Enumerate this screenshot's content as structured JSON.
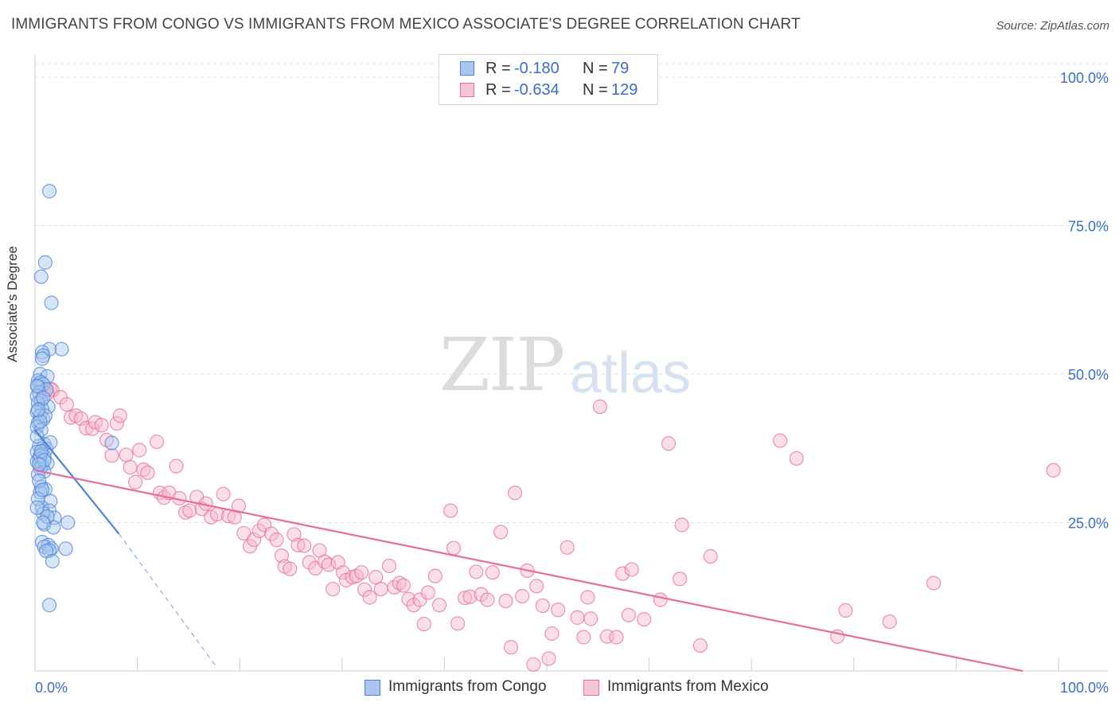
{
  "title": "IMMIGRANTS FROM CONGO VS IMMIGRANTS FROM MEXICO ASSOCIATE'S DEGREE CORRELATION CHART",
  "source": "Source: ZipAtlas.com",
  "watermark": {
    "zip": "ZIP",
    "atlas": "atlas"
  },
  "legend_top": [
    {
      "r_label": "R =",
      "r_value": "-0.180",
      "n_label": "N =",
      "n_value": "79"
    },
    {
      "r_label": "R =",
      "r_value": "-0.634",
      "n_label": "N =",
      "n_value": "129"
    }
  ],
  "colors": {
    "congo": "#4a86d8",
    "congo_fill": "#a9c6ef",
    "mexico": "#e86d9c",
    "mexico_fill": "#f6b7cc",
    "tick_label": "#3a6fc4",
    "grid": "#e2e2e2"
  },
  "chart_data": {
    "type": "scatter",
    "title": "IMMIGRANTS FROM CONGO VS IMMIGRANTS FROM MEXICO ASSOCIATE'S DEGREE CORRELATION CHART",
    "xlabel": "",
    "ylabel": "Associate's Degree",
    "xlim": [
      0,
      100
    ],
    "ylim": [
      0,
      100
    ],
    "x_tick_labels": [
      "0.0%",
      "100.0%"
    ],
    "y_ticks": [
      25,
      50,
      75,
      100
    ],
    "y_tick_labels": [
      "25.0%",
      "50.0%",
      "75.0%",
      "100.0%"
    ],
    "legend": [
      "Immigrants from Congo",
      "Immigrants from Mexico"
    ],
    "grid": true,
    "series": [
      {
        "name": "Immigrants from Congo",
        "r": -0.18,
        "n": 79,
        "trend": {
          "x0": 0,
          "y0": 40.6,
          "x1": 8.2,
          "y1": 23.1,
          "dash_x1": 17.8,
          "dash_y1": 0.5
        },
        "points": [
          [
            1.4,
            80.8
          ],
          [
            1.0,
            68.8
          ],
          [
            0.6,
            66.4
          ],
          [
            1.6,
            62.0
          ],
          [
            2.6,
            54.2
          ],
          [
            1.4,
            54.2
          ],
          [
            0.7,
            53.7
          ],
          [
            0.8,
            53.1
          ],
          [
            0.7,
            52.6
          ],
          [
            0.5,
            50.0
          ],
          [
            1.2,
            49.6
          ],
          [
            0.3,
            48.9
          ],
          [
            0.6,
            48.6
          ],
          [
            0.8,
            48.3
          ],
          [
            0.3,
            47.9
          ],
          [
            1.1,
            47.4
          ],
          [
            0.4,
            46.9
          ],
          [
            0.2,
            46.3
          ],
          [
            0.6,
            45.5
          ],
          [
            0.3,
            45.1
          ],
          [
            1.3,
            44.5
          ],
          [
            0.7,
            44.1
          ],
          [
            0.2,
            43.6
          ],
          [
            0.5,
            43.0
          ],
          [
            0.8,
            42.4
          ],
          [
            0.3,
            41.8
          ],
          [
            0.2,
            41.1
          ],
          [
            0.6,
            40.6
          ],
          [
            0.9,
            38.2
          ],
          [
            7.5,
            38.4
          ],
          [
            0.4,
            37.9
          ],
          [
            1.1,
            37.4
          ],
          [
            0.2,
            36.9
          ],
          [
            0.6,
            36.5
          ],
          [
            0.9,
            36.1
          ],
          [
            0.4,
            35.7
          ],
          [
            0.2,
            35.3
          ],
          [
            1.2,
            35.0
          ],
          [
            0.7,
            34.6
          ],
          [
            0.5,
            34.1
          ],
          [
            0.9,
            33.6
          ],
          [
            0.3,
            33.1
          ],
          [
            0.6,
            31.0
          ],
          [
            1.0,
            30.6
          ],
          [
            0.5,
            30.1
          ],
          [
            1.5,
            28.6
          ],
          [
            0.7,
            27.5
          ],
          [
            1.4,
            27.0
          ],
          [
            0.8,
            26.5
          ],
          [
            1.9,
            25.8
          ],
          [
            3.2,
            25.0
          ],
          [
            0.9,
            24.7
          ],
          [
            1.8,
            24.2
          ],
          [
            0.7,
            21.7
          ],
          [
            1.3,
            21.2
          ],
          [
            0.9,
            20.9
          ],
          [
            1.6,
            20.6
          ],
          [
            3.0,
            20.6
          ],
          [
            1.4,
            20.3
          ],
          [
            1.1,
            20.2
          ],
          [
            1.7,
            18.5
          ],
          [
            1.4,
            11.1
          ],
          [
            0.2,
            39.5
          ],
          [
            0.4,
            32.0
          ],
          [
            0.3,
            29.0
          ],
          [
            0.5,
            36.2
          ],
          [
            1.0,
            43.0
          ],
          [
            0.8,
            46.0
          ],
          [
            0.2,
            48.0
          ],
          [
            0.6,
            37.0
          ],
          [
            0.9,
            35.5
          ],
          [
            0.4,
            34.8
          ],
          [
            1.2,
            26.0
          ],
          [
            0.5,
            42.0
          ],
          [
            0.3,
            44.0
          ],
          [
            0.7,
            30.5
          ],
          [
            0.2,
            27.5
          ],
          [
            1.5,
            38.5
          ],
          [
            0.8,
            25.0
          ]
        ]
      },
      {
        "name": "Immigrants from Mexico",
        "r": -0.634,
        "n": 129,
        "trend": {
          "x0": 0,
          "y0": 33.8,
          "x1": 96.5,
          "y1": 0
        },
        "points": [
          [
            0.4,
            48.5
          ],
          [
            0.6,
            47.6
          ],
          [
            1.5,
            47.5
          ],
          [
            1.7,
            47.3
          ],
          [
            0.8,
            47.0
          ],
          [
            1.2,
            46.7
          ],
          [
            2.5,
            46.1
          ],
          [
            3.1,
            44.9
          ],
          [
            3.5,
            42.7
          ],
          [
            4.0,
            43.0
          ],
          [
            4.5,
            42.5
          ],
          [
            5.0,
            40.9
          ],
          [
            5.6,
            40.8
          ],
          [
            5.9,
            41.9
          ],
          [
            6.5,
            41.4
          ],
          [
            7.0,
            38.9
          ],
          [
            7.5,
            36.3
          ],
          [
            8.0,
            41.7
          ],
          [
            8.3,
            43.0
          ],
          [
            8.9,
            36.4
          ],
          [
            9.3,
            34.3
          ],
          [
            9.8,
            31.8
          ],
          [
            10.2,
            37.2
          ],
          [
            10.6,
            33.9
          ],
          [
            11.0,
            33.4
          ],
          [
            11.9,
            38.6
          ],
          [
            12.2,
            30.0
          ],
          [
            12.6,
            29.2
          ],
          [
            13.1,
            30.0
          ],
          [
            13.8,
            34.5
          ],
          [
            14.1,
            29.1
          ],
          [
            14.7,
            26.7
          ],
          [
            15.1,
            27.0
          ],
          [
            15.8,
            29.3
          ],
          [
            16.3,
            27.3
          ],
          [
            16.7,
            28.2
          ],
          [
            17.2,
            25.9
          ],
          [
            17.8,
            26.4
          ],
          [
            18.4,
            29.8
          ],
          [
            18.9,
            26.1
          ],
          [
            19.5,
            25.9
          ],
          [
            19.9,
            27.8
          ],
          [
            20.4,
            23.2
          ],
          [
            21.0,
            21.0
          ],
          [
            21.4,
            22.1
          ],
          [
            21.9,
            23.6
          ],
          [
            22.4,
            24.6
          ],
          [
            23.1,
            23.1
          ],
          [
            23.6,
            22.1
          ],
          [
            24.1,
            19.4
          ],
          [
            24.4,
            17.6
          ],
          [
            24.9,
            17.2
          ],
          [
            25.3,
            23.0
          ],
          [
            25.7,
            21.2
          ],
          [
            26.3,
            21.1
          ],
          [
            26.8,
            18.3
          ],
          [
            27.4,
            17.3
          ],
          [
            27.8,
            20.3
          ],
          [
            28.3,
            18.4
          ],
          [
            28.7,
            17.9
          ],
          [
            29.1,
            13.8
          ],
          [
            29.6,
            18.3
          ],
          [
            30.1,
            16.6
          ],
          [
            30.4,
            15.3
          ],
          [
            31.0,
            15.8
          ],
          [
            31.4,
            16.0
          ],
          [
            31.9,
            16.6
          ],
          [
            32.2,
            13.7
          ],
          [
            32.7,
            12.4
          ],
          [
            33.3,
            15.8
          ],
          [
            33.8,
            13.8
          ],
          [
            34.6,
            17.7
          ],
          [
            35.1,
            14.1
          ],
          [
            35.6,
            14.8
          ],
          [
            36.0,
            14.4
          ],
          [
            36.5,
            12.1
          ],
          [
            37.0,
            11.1
          ],
          [
            37.6,
            12.0
          ],
          [
            38.0,
            7.9
          ],
          [
            38.4,
            13.2
          ],
          [
            39.1,
            16.0
          ],
          [
            39.5,
            11.1
          ],
          [
            40.6,
            27.0
          ],
          [
            40.9,
            20.7
          ],
          [
            41.3,
            8.0
          ],
          [
            42.0,
            12.3
          ],
          [
            42.5,
            12.5
          ],
          [
            43.1,
            16.7
          ],
          [
            43.6,
            12.9
          ],
          [
            44.2,
            12.0
          ],
          [
            44.7,
            16.6
          ],
          [
            45.5,
            23.4
          ],
          [
            46.0,
            11.8
          ],
          [
            46.5,
            4.0
          ],
          [
            46.9,
            30.0
          ],
          [
            47.6,
            12.6
          ],
          [
            48.1,
            16.9
          ],
          [
            48.7,
            1.1
          ],
          [
            49.0,
            14.3
          ],
          [
            49.6,
            11.0
          ],
          [
            50.2,
            2.1
          ],
          [
            50.5,
            6.3
          ],
          [
            51.1,
            10.3
          ],
          [
            52.0,
            20.8
          ],
          [
            53.0,
            9.0
          ],
          [
            53.6,
            5.7
          ],
          [
            54.0,
            12.4
          ],
          [
            54.3,
            8.8
          ],
          [
            55.2,
            44.5
          ],
          [
            55.9,
            5.8
          ],
          [
            56.8,
            5.7
          ],
          [
            57.4,
            16.4
          ],
          [
            58.0,
            9.4
          ],
          [
            58.3,
            17.1
          ],
          [
            59.5,
            8.7
          ],
          [
            61.1,
            12.0
          ],
          [
            61.9,
            38.3
          ],
          [
            63.0,
            15.5
          ],
          [
            63.2,
            24.6
          ],
          [
            65.0,
            4.3
          ],
          [
            66.0,
            19.3
          ],
          [
            72.8,
            38.8
          ],
          [
            74.4,
            35.8
          ],
          [
            78.4,
            5.8
          ],
          [
            79.2,
            10.2
          ],
          [
            83.5,
            8.3
          ],
          [
            87.8,
            14.8
          ],
          [
            99.5,
            33.8
          ]
        ]
      }
    ]
  }
}
